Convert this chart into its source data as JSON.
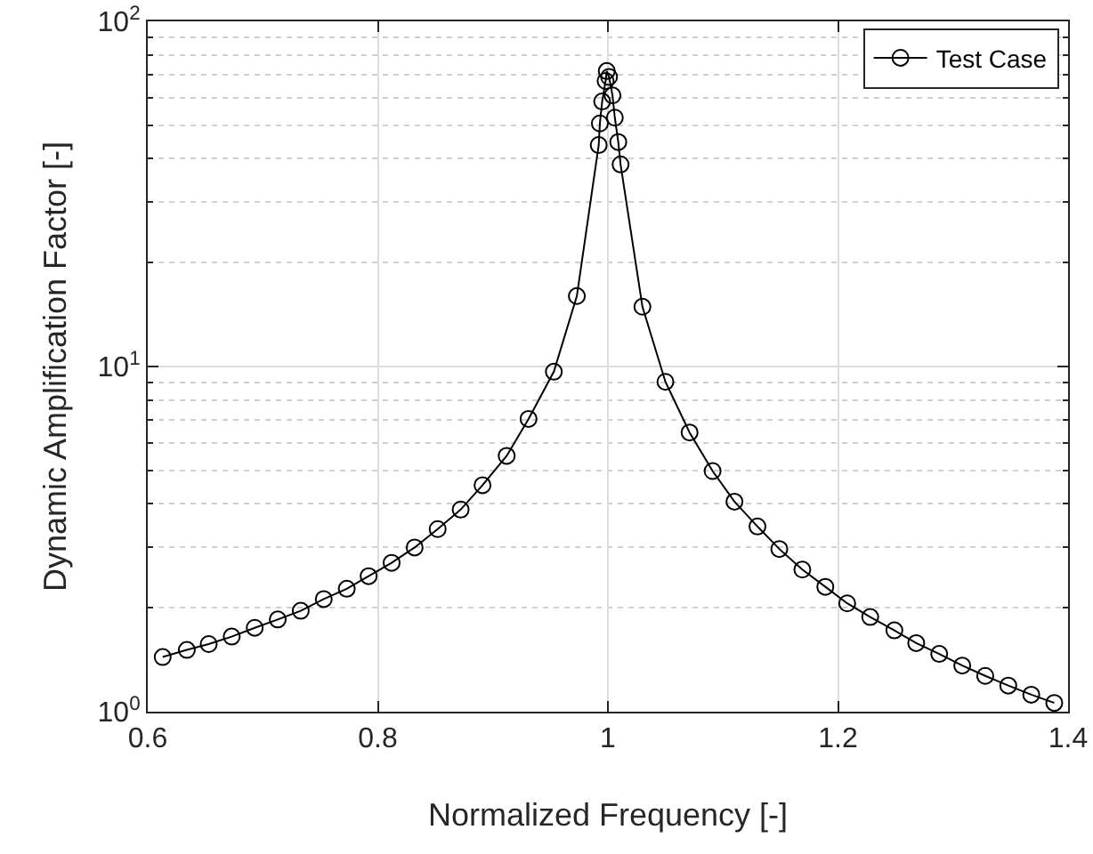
{
  "chart_data": {
    "type": "line",
    "xlabel": "Normalized Frequency [-]",
    "ylabel": "Dynamic Amplification Factor [-]",
    "x": [
      0.613,
      0.634,
      0.653,
      0.673,
      0.693,
      0.713,
      0.733,
      0.753,
      0.773,
      0.792,
      0.812,
      0.832,
      0.852,
      0.872,
      0.891,
      0.912,
      0.931,
      0.953,
      0.973,
      0.992,
      0.993,
      0.995,
      0.998,
      0.999,
      1.001,
      1.004,
      1.006,
      1.009,
      1.011,
      1.03,
      1.05,
      1.071,
      1.091,
      1.11,
      1.13,
      1.149,
      1.169,
      1.189,
      1.208,
      1.228,
      1.249,
      1.268,
      1.288,
      1.308,
      1.328,
      1.348,
      1.368,
      1.388
    ],
    "series": [
      {
        "name": "Test Case",
        "color": "#000000",
        "values": [
          1.44,
          1.51,
          1.57,
          1.65,
          1.75,
          1.85,
          1.96,
          2.12,
          2.27,
          2.47,
          2.7,
          2.99,
          3.38,
          3.85,
          4.53,
          5.51,
          7.05,
          9.66,
          16,
          43.8,
          50.6,
          58.6,
          67.2,
          71.8,
          69,
          61,
          52.6,
          44.7,
          38.5,
          14.9,
          9.03,
          6.44,
          4.98,
          4.06,
          3.44,
          2.96,
          2.58,
          2.3,
          2.06,
          1.88,
          1.72,
          1.58,
          1.47,
          1.36,
          1.27,
          1.19,
          1.12,
          1.06
        ]
      }
    ],
    "xlim": [
      0.6,
      1.4
    ],
    "xticks": [
      0.6,
      0.8,
      1,
      1.2,
      1.4
    ],
    "ylim": [
      1,
      100
    ],
    "yticks": [
      {
        "value": 1,
        "label": "10$^{0}$"
      },
      {
        "value": 10,
        "label": "10$^{1}$"
      },
      {
        "value": 100,
        "label": "10$^{2}$"
      }
    ],
    "log": "y",
    "grid": true,
    "legend": "top right",
    "marker": "circle",
    "line_style": "solid"
  }
}
